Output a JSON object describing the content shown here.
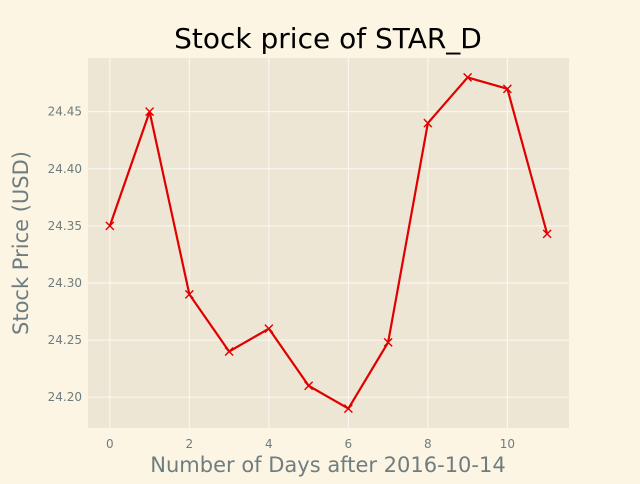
{
  "chart_data": {
    "type": "line",
    "title": "Stock price of STAR_D",
    "xlabel": "Number of Days after 2016-10-14",
    "ylabel": "Stock Price (USD)",
    "x": [
      0,
      1,
      2,
      3,
      4,
      5,
      6,
      7,
      8,
      9,
      10,
      11
    ],
    "series": [
      {
        "values": [
          24.35,
          24.45,
          24.29,
          24.24,
          24.26,
          24.21,
          24.19,
          24.248,
          24.44,
          24.48,
          24.47,
          24.343
        ],
        "color": "#e00000",
        "marker": "x"
      }
    ],
    "xlim": [
      -0.55,
      11.55
    ],
    "ylim": [
      24.173,
      24.497
    ],
    "xticks": [
      0,
      2,
      4,
      6,
      8,
      10
    ],
    "yticks": [
      24.2,
      24.25,
      24.3,
      24.35,
      24.4,
      24.45
    ],
    "xtick_labels": [
      "0",
      "2",
      "4",
      "6",
      "8",
      "10"
    ],
    "ytick_labels": [
      "24.20",
      "24.25",
      "24.30",
      "24.35",
      "24.40",
      "24.45"
    ],
    "grid": true,
    "legend": "none",
    "colors": {
      "figure_bg": "#fcf5e3",
      "plot_bg": "#eee6d4",
      "grid": "#fbf9f3",
      "tick_text": "#6f7d80",
      "label_text": "#6f7d80",
      "title_text": "#000000"
    }
  }
}
